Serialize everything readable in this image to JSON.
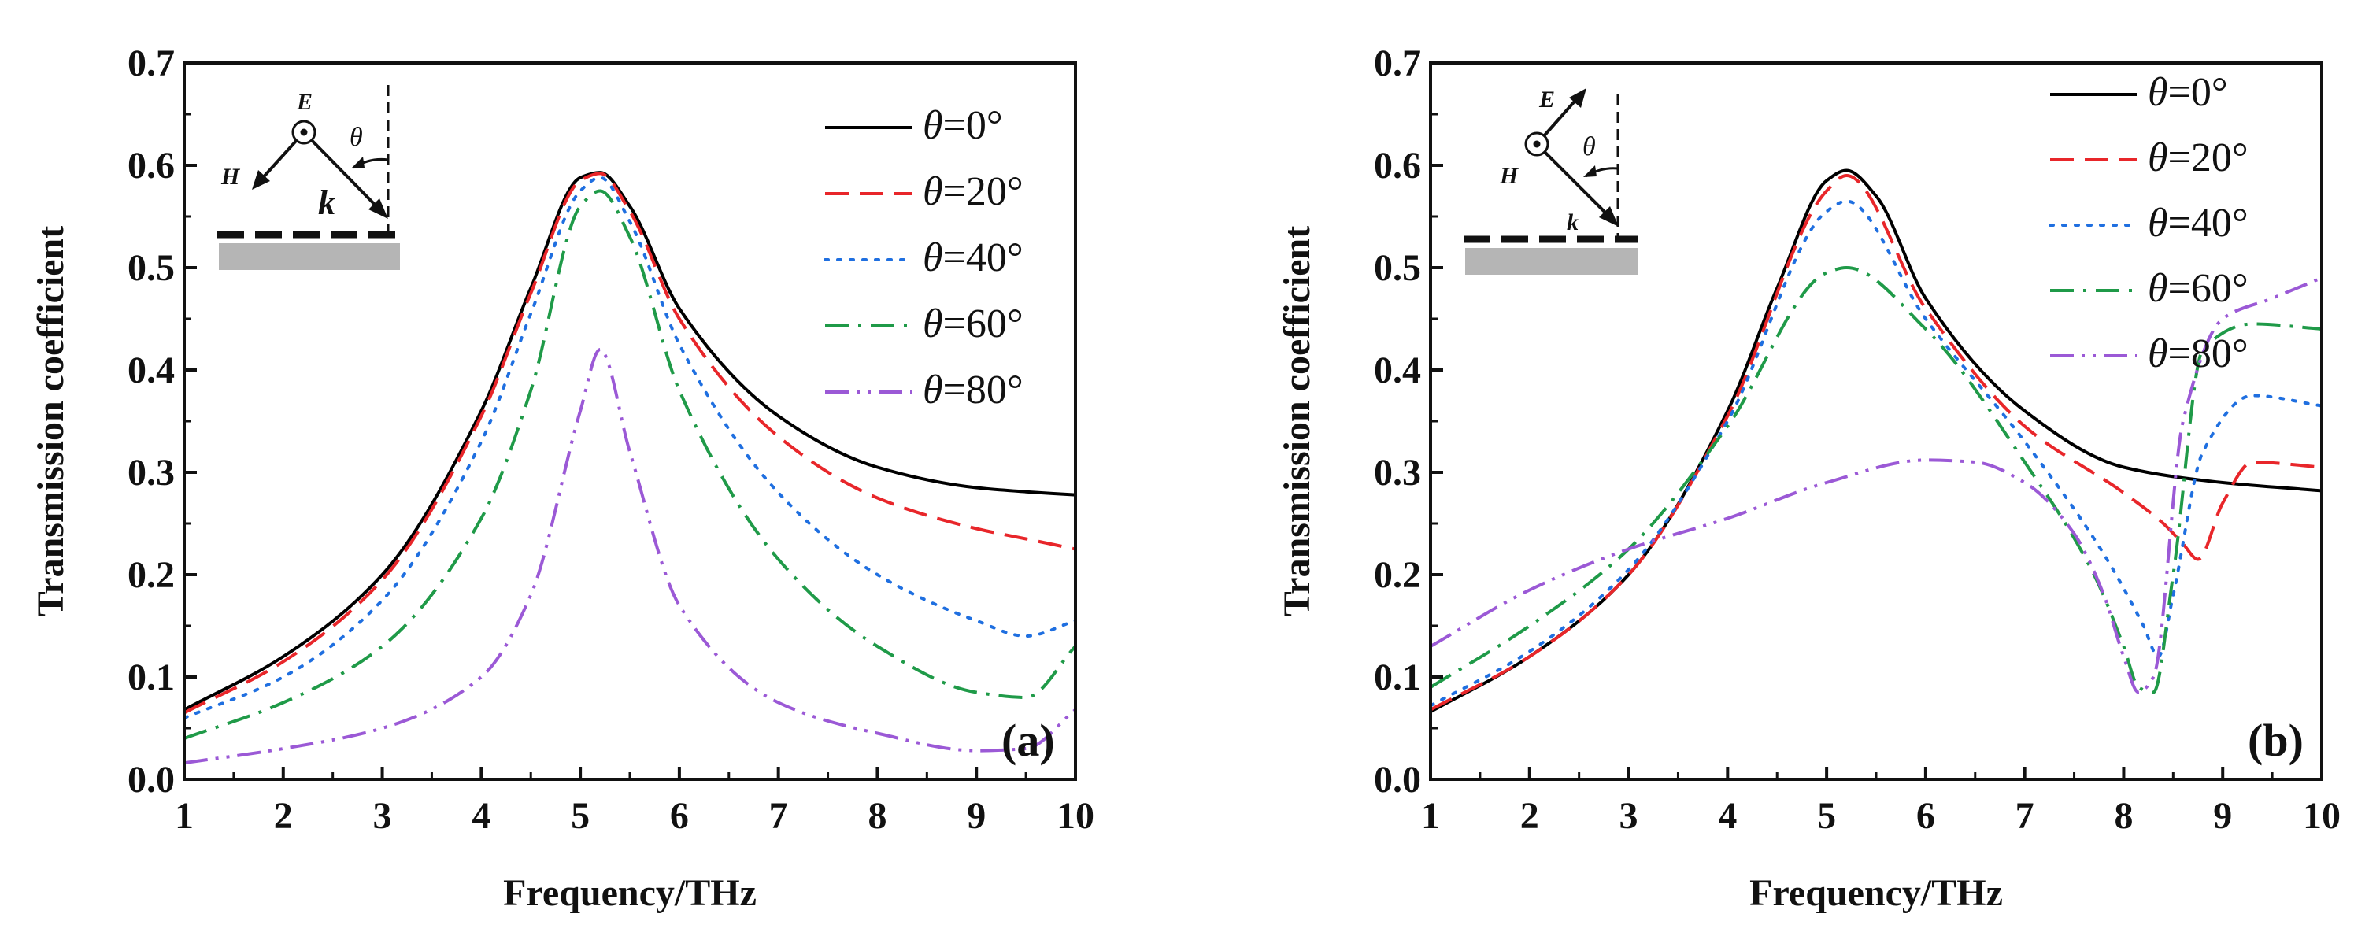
{
  "figure": {
    "panels": [
      "(a)",
      "(b)"
    ]
  },
  "chart_data": [
    {
      "type": "line",
      "panel_label": "(a)",
      "title": "",
      "xlabel": "Frequency/THz",
      "ylabel": "Transmission coefficient",
      "xlim": [
        1,
        10
      ],
      "ylim": [
        0,
        0.7
      ],
      "xticks": [
        1,
        2,
        3,
        4,
        5,
        6,
        7,
        8,
        9,
        10
      ],
      "yticks": [
        "0.0",
        "0.1",
        "0.2",
        "0.3",
        "0.4",
        "0.5",
        "0.6",
        "0.7"
      ],
      "legend_position": "top-right",
      "inset": {
        "labels": [
          "E",
          "H",
          "k",
          "θ"
        ],
        "description": "TE polarization: E out of plane"
      },
      "x": [
        1,
        2,
        3,
        4,
        4.5,
        5,
        5.2,
        5.5,
        6,
        7,
        8,
        9,
        9.5,
        10
      ],
      "series": [
        {
          "name": "θ=0°",
          "color": "#000000",
          "dash": "solid",
          "values": [
            0.068,
            0.12,
            0.2,
            0.36,
            0.48,
            0.588,
            0.593,
            0.56,
            0.46,
            0.355,
            0.305,
            0.285,
            0.281,
            0.278
          ]
        },
        {
          "name": "θ=20°",
          "color": "#e8262a",
          "dash": "dash",
          "values": [
            0.065,
            0.115,
            0.195,
            0.355,
            0.475,
            0.585,
            0.592,
            0.555,
            0.45,
            0.335,
            0.275,
            0.245,
            0.235,
            0.225
          ]
        },
        {
          "name": "θ=40°",
          "color": "#1f6fe0",
          "dash": "dot",
          "values": [
            0.06,
            0.1,
            0.175,
            0.33,
            0.455,
            0.575,
            0.588,
            0.545,
            0.425,
            0.28,
            0.2,
            0.155,
            0.14,
            0.155
          ]
        },
        {
          "name": "θ=60°",
          "color": "#1f9a48",
          "dash": "dashdot",
          "values": [
            0.04,
            0.075,
            0.13,
            0.255,
            0.38,
            0.56,
            0.575,
            0.53,
            0.38,
            0.215,
            0.13,
            0.085,
            0.08,
            0.13
          ]
        },
        {
          "name": "θ=80°",
          "color": "#9b59d6",
          "dash": "dashdotdot",
          "values": [
            0.016,
            0.03,
            0.05,
            0.1,
            0.18,
            0.36,
            0.42,
            0.32,
            0.17,
            0.075,
            0.045,
            0.028,
            0.03,
            0.068
          ]
        }
      ]
    },
    {
      "type": "line",
      "panel_label": "(b)",
      "title": "",
      "xlabel": "Frequency/THz",
      "ylabel": "Transmission coefficient",
      "xlim": [
        1,
        10
      ],
      "ylim": [
        0,
        0.7
      ],
      "xticks": [
        1,
        2,
        3,
        4,
        5,
        6,
        7,
        8,
        9,
        10
      ],
      "yticks": [
        "0.0",
        "0.1",
        "0.2",
        "0.3",
        "0.4",
        "0.5",
        "0.6",
        "0.7"
      ],
      "legend_position": "top-right",
      "inset": {
        "labels": [
          "E",
          "H",
          "k",
          "θ"
        ],
        "description": "TM polarization: H out of plane"
      },
      "series": [
        {
          "name": "θ=0°",
          "color": "#000000",
          "dash": "solid",
          "x": [
            1,
            2,
            3,
            4,
            4.5,
            5,
            5.2,
            5.5,
            6,
            7,
            8,
            9,
            10
          ],
          "values": [
            0.066,
            0.12,
            0.2,
            0.36,
            0.48,
            0.585,
            0.595,
            0.57,
            0.47,
            0.36,
            0.305,
            0.29,
            0.282
          ]
        },
        {
          "name": "θ=20°",
          "color": "#e8262a",
          "dash": "dash",
          "x": [
            1,
            2,
            3,
            4,
            5,
            5.2,
            6,
            7,
            8,
            8.4,
            8.6,
            8.75,
            9,
            9.3,
            10
          ],
          "values": [
            0.068,
            0.12,
            0.2,
            0.355,
            0.575,
            0.59,
            0.46,
            0.345,
            0.28,
            0.25,
            0.23,
            0.215,
            0.27,
            0.31,
            0.305
          ]
        },
        {
          "name": "θ=40°",
          "color": "#1f6fe0",
          "dash": "dot",
          "x": [
            1,
            2,
            3,
            4,
            5,
            5.2,
            6,
            7,
            7.8,
            8.2,
            8.35,
            8.5,
            8.8,
            9.3,
            10
          ],
          "values": [
            0.072,
            0.125,
            0.205,
            0.35,
            0.555,
            0.565,
            0.45,
            0.33,
            0.22,
            0.15,
            0.12,
            0.18,
            0.32,
            0.375,
            0.365
          ]
        },
        {
          "name": "θ=60°",
          "color": "#1f9a48",
          "dash": "dashdot",
          "x": [
            1,
            2,
            3,
            4,
            5,
            5.2,
            6,
            7,
            7.7,
            8,
            8.15,
            8.3,
            8.5,
            8.8,
            9.3,
            10
          ],
          "values": [
            0.09,
            0.15,
            0.225,
            0.345,
            0.495,
            0.5,
            0.44,
            0.31,
            0.2,
            0.13,
            0.09,
            0.085,
            0.2,
            0.42,
            0.445,
            0.44
          ]
        },
        {
          "name": "θ=80°",
          "color": "#9b59d6",
          "dash": "dashdotdot",
          "x": [
            1,
            2,
            3,
            4,
            5,
            6,
            6.5,
            7,
            7.5,
            7.8,
            8,
            8.15,
            8.3,
            8.6,
            9,
            9.5,
            10
          ],
          "values": [
            0.13,
            0.185,
            0.225,
            0.255,
            0.29,
            0.312,
            0.31,
            0.29,
            0.24,
            0.18,
            0.12,
            0.085,
            0.1,
            0.35,
            0.45,
            0.47,
            0.49
          ]
        }
      ]
    }
  ]
}
